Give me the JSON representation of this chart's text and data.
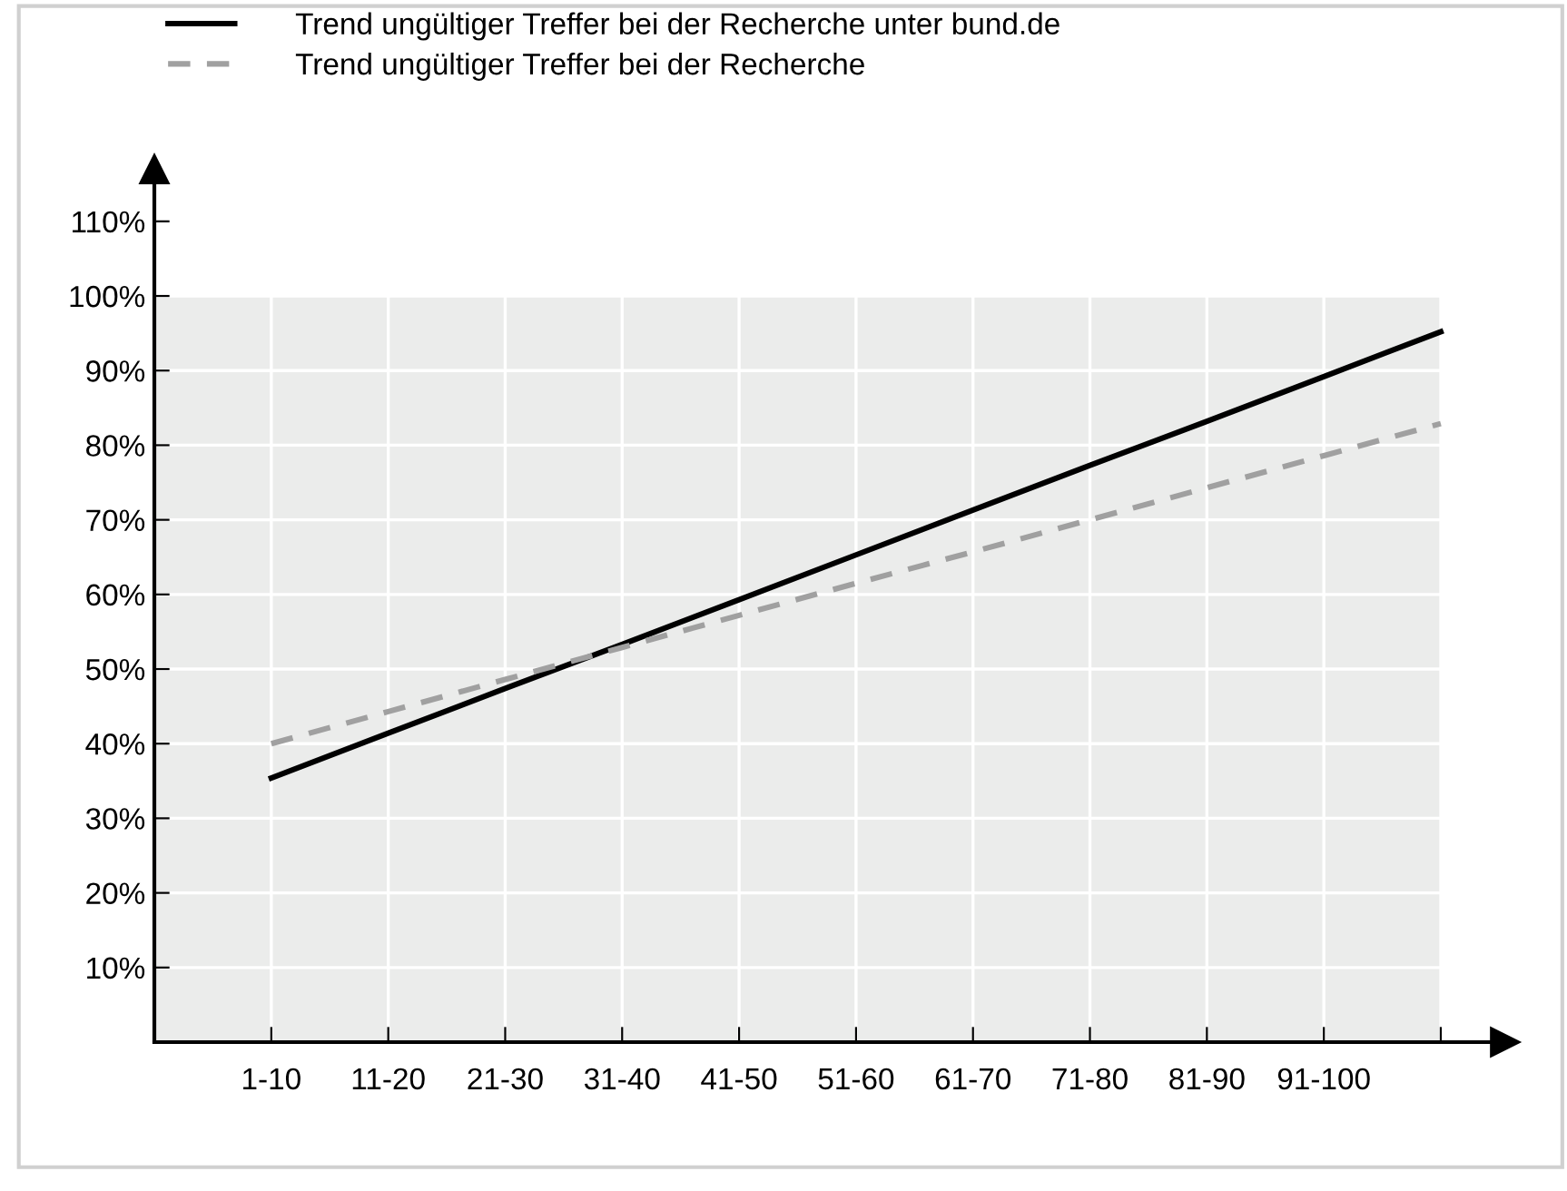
{
  "chart_data": {
    "type": "line",
    "categories": [
      "1-10",
      "11-20",
      "21-30",
      "31-40",
      "41-50",
      "51-60",
      "61-70",
      "71-80",
      "81-90",
      "91-100",
      null
    ],
    "series": [
      {
        "name": "Trend ungültiger Treffer bei der Recherche unter bund.de",
        "color": "#000000",
        "line_style": "solid",
        "values": [
          35.4,
          41.4,
          47.4,
          53.3,
          59.3,
          65.3,
          71.3,
          77.3,
          83.2,
          89.2,
          95.2
        ]
      },
      {
        "name": "Trend ungültiger Treffer bei der Recherche",
        "color": "#a0a0a0",
        "line_style": "dashed",
        "values": [
          40.0,
          44.3,
          48.6,
          52.9,
          57.2,
          61.5,
          65.7,
          70.0,
          74.3,
          78.6,
          82.9
        ]
      }
    ],
    "ylim": [
      0,
      117
    ],
    "yticks": [
      {
        "value": 10,
        "label": "10%"
      },
      {
        "value": 20,
        "label": "20%"
      },
      {
        "value": 30,
        "label": "30%"
      },
      {
        "value": 40,
        "label": "40%"
      },
      {
        "value": 50,
        "label": "50%"
      },
      {
        "value": 60,
        "label": "60%"
      },
      {
        "value": 70,
        "label": "70%"
      },
      {
        "value": 80,
        "label": "80%"
      },
      {
        "value": 90,
        "label": "90%"
      },
      {
        "value": 100,
        "label": "100%"
      },
      {
        "value": 110,
        "label": "110%"
      }
    ],
    "bands": [
      {
        "axis": "y",
        "from": 0,
        "to": 100,
        "color": "#ebeceb"
      }
    ],
    "grid": true,
    "legend": "top left",
    "marker": "none"
  }
}
